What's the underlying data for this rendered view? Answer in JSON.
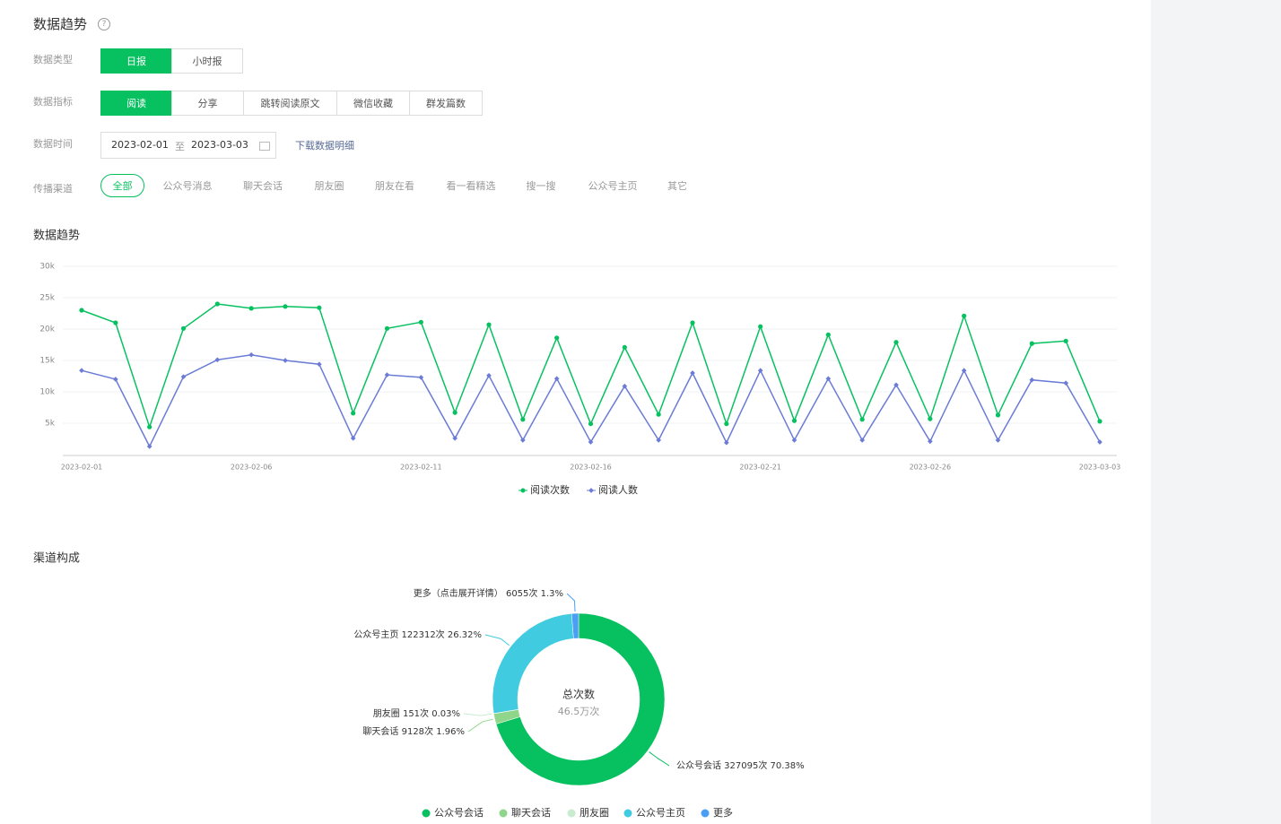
{
  "header": {
    "title": "数据趋势"
  },
  "filters": {
    "type": {
      "label": "数据类型",
      "options": [
        "日报",
        "小时报"
      ]
    },
    "metric": {
      "label": "数据指标",
      "options": [
        "阅读",
        "分享",
        "跳转阅读原文",
        "微信收藏",
        "群发篇数"
      ]
    },
    "time": {
      "label": "数据时间",
      "start": "2023-02-01",
      "separator": "至",
      "end": "2023-03-03",
      "download": "下载数据明细"
    },
    "channel": {
      "label": "传播渠道",
      "options": [
        "全部",
        "公众号消息",
        "聊天会话",
        "朋友圈",
        "朋友在看",
        "看一看精选",
        "搜一搜",
        "公众号主页",
        "其它"
      ]
    }
  },
  "chart_data": [
    {
      "type": "line",
      "title": "数据趋势",
      "categories": [
        "2023-02-01",
        null,
        null,
        null,
        null,
        "2023-02-06",
        null,
        null,
        null,
        null,
        "2023-02-11",
        null,
        null,
        null,
        null,
        "2023-02-16",
        null,
        null,
        null,
        null,
        "2023-02-21",
        null,
        null,
        null,
        null,
        "2023-02-26",
        null,
        null,
        null,
        null,
        "2023-03-03"
      ],
      "series": [
        {
          "name": "阅读次数",
          "color": "#07c160",
          "values": [
            23000,
            21000,
            4400,
            20100,
            24000,
            23300,
            23600,
            23400,
            6600,
            20100,
            21100,
            6700,
            20700,
            5600,
            18600,
            4900,
            17100,
            6400,
            21000,
            4900,
            20400,
            5400,
            19100,
            5600,
            17900,
            5700,
            22100,
            6300,
            17700,
            18100,
            5300
          ]
        },
        {
          "name": "阅读人数",
          "color": "#6b7bd6",
          "values": [
            13400,
            12000,
            1300,
            12400,
            15100,
            15900,
            15000,
            14400,
            2600,
            12700,
            12300,
            2600,
            12600,
            2300,
            12100,
            2000,
            10900,
            2300,
            13000,
            1900,
            13400,
            2300,
            12100,
            2300,
            11100,
            2100,
            13400,
            2300,
            11900,
            11400,
            2000
          ]
        }
      ],
      "ylim": [
        0,
        30000
      ],
      "yticks": [
        {
          "value": 5000,
          "label": "5k"
        },
        {
          "value": 10000,
          "label": "10k"
        },
        {
          "value": 15000,
          "label": "15k"
        },
        {
          "value": 20000,
          "label": "20k"
        },
        {
          "value": 25000,
          "label": "25k"
        },
        {
          "value": 30000,
          "label": "30k"
        }
      ],
      "grid": true,
      "legend": "bottom"
    },
    {
      "type": "donut",
      "title": "渠道构成",
      "categories": [
        "公众号会话",
        "聊天会话",
        "朋友圈",
        "公众号主页",
        "更多"
      ],
      "values": [
        327095,
        9128,
        151,
        122312,
        6055
      ],
      "value_labels": [
        "公众号会话 327095次 70.38%",
        "聊天会话 9128次 1.96%",
        "朋友圈 151次 0.03%",
        "公众号主页 122312次 26.32%",
        "更多（点击展开详情） 6055次 1.3%"
      ],
      "colors": [
        "#07c160",
        "#8fd68a",
        "#c9ecd1",
        "#40cbe0",
        "#4a9ff5"
      ],
      "center_title": "总次数",
      "center_value": "46.5万次",
      "legend": "bottom"
    }
  ]
}
